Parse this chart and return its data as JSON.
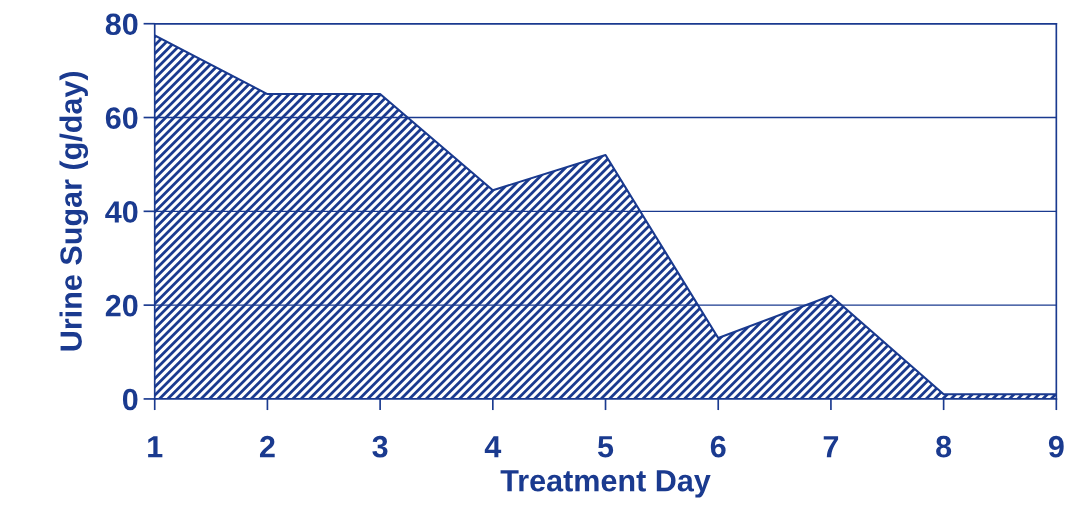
{
  "chart_data": {
    "type": "area",
    "xlabel": "Treatment Day",
    "ylabel": "Urine Sugar (g/day)",
    "x": [
      1,
      2,
      3,
      4,
      5,
      6,
      7,
      8,
      9
    ],
    "series": [
      {
        "color": "#1a3a8f",
        "values": [
          77.5,
          65,
          65,
          44.5,
          52,
          13,
          22,
          1,
          1
        ]
      }
    ],
    "xlim": [
      1,
      9
    ],
    "xticks": [
      1,
      2,
      3,
      4,
      5,
      6,
      7,
      8,
      9
    ],
    "ylim": [
      0,
      80
    ],
    "yticks": [
      0,
      20,
      40,
      60,
      80
    ],
    "grid": "y",
    "legend": false
  }
}
